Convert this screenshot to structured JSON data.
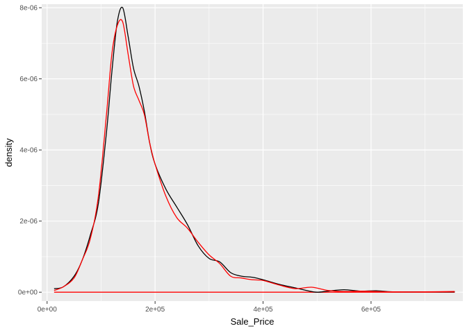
{
  "chart_data": {
    "type": "line",
    "title": "",
    "xlabel": "Sale_Price",
    "ylabel": "density",
    "xlim": [
      -10000,
      770000
    ],
    "ylim": [
      -2.5e-07,
      8.1e-06
    ],
    "x_ticks": [
      {
        "value": 0,
        "label": "0e+00"
      },
      {
        "value": 200000,
        "label": "2e+05"
      },
      {
        "value": 400000,
        "label": "4e+05"
      },
      {
        "value": 600000,
        "label": "6e+05"
      }
    ],
    "y_ticks": [
      {
        "value": 0,
        "label": "0e+00"
      },
      {
        "value": 2e-06,
        "label": "2e-06"
      },
      {
        "value": 4e-06,
        "label": "4e-06"
      },
      {
        "value": 6e-06,
        "label": "6e-06"
      },
      {
        "value": 8e-06,
        "label": "8e-06"
      }
    ],
    "grid": true,
    "legend": "none",
    "colors": {
      "panel": "#ebebeb",
      "grid": "#ffffff",
      "series_1": "#000000",
      "series_2": "#ff0000"
    },
    "series": [
      {
        "color": "#000000",
        "x": [
          13000,
          30000,
          50000,
          65000,
          80000,
          95000,
          110000,
          120000,
          130000,
          140000,
          150000,
          160000,
          170000,
          180000,
          190000,
          200000,
          220000,
          240000,
          260000,
          280000,
          300000,
          320000,
          340000,
          360000,
          380000,
          400000,
          430000,
          460000,
          480000,
          500000,
          520000,
          550000,
          580000,
          610000,
          640000,
          700000,
          755000
        ],
        "y": [
          1e-07,
          1.5e-07,
          4.5e-07,
          9e-07,
          1.6e-06,
          2.5e-06,
          4.5e-06,
          6.2e-06,
          7.6e-06,
          8e-06,
          7.2e-06,
          6.3e-06,
          5.8e-06,
          5.1e-06,
          4.2e-06,
          3.6e-06,
          2.9e-06,
          2.4e-06,
          1.9e-06,
          1.3e-06,
          9.5e-07,
          8.5e-07,
          5.5e-07,
          4.5e-07,
          4.2e-07,
          3.5e-07,
          2.2e-07,
          1.2e-07,
          5e-08,
          0.0,
          3e-08,
          7e-08,
          3e-08,
          4e-08,
          1e-08,
          1e-08,
          1e-08
        ]
      },
      {
        "color": "#ff0000",
        "x": [
          13000,
          30000,
          50000,
          65000,
          80000,
          95000,
          110000,
          120000,
          130000,
          140000,
          150000,
          160000,
          170000,
          180000,
          190000,
          200000,
          220000,
          240000,
          260000,
          280000,
          300000,
          320000,
          340000,
          360000,
          380000,
          400000,
          430000,
          460000,
          490000,
          520000,
          550000,
          580000,
          610000,
          640000,
          700000,
          755000
        ],
        "y": [
          5e-08,
          1.5e-07,
          4e-07,
          9e-07,
          1.5e-06,
          2.7e-06,
          5e-06,
          6.7e-06,
          7.5e-06,
          7.6e-06,
          6.7e-06,
          5.8e-06,
          5.4e-06,
          5e-06,
          4.2e-06,
          3.6e-06,
          2.7e-06,
          2.1e-06,
          1.8e-06,
          1.4e-06,
          1.05e-06,
          8e-07,
          4.5e-07,
          4e-07,
          3.5e-07,
          3.3e-07,
          2e-07,
          1e-07,
          1.4e-07,
          5e-08,
          2e-08,
          3e-08,
          2e-08,
          1e-08,
          1e-08,
          2e-08
        ]
      }
    ],
    "baseline": {
      "color": "#ff0000",
      "x": [
        13000,
        755000
      ],
      "y": [
        0,
        0
      ]
    }
  }
}
